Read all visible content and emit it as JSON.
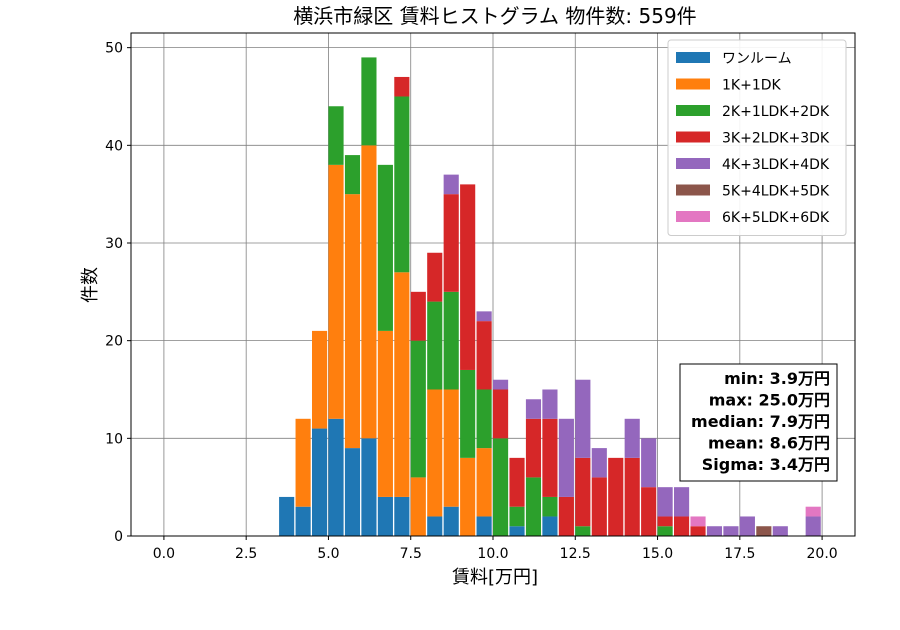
{
  "chart_data": {
    "type": "bar",
    "stacked": true,
    "title": "横浜市緑区 賃料ヒストグラム 物件数: 559件",
    "xlabel": "賃料[万円]",
    "ylabel": "件数",
    "xlim": [
      -1.0,
      21.0
    ],
    "ylim": [
      0,
      51.5
    ],
    "xticks": [
      "0.0",
      "2.5",
      "5.0",
      "7.5",
      "10.0",
      "12.5",
      "15.0",
      "17.5",
      "20.0"
    ],
    "yticks": [
      "0",
      "10",
      "20",
      "30",
      "40",
      "50"
    ],
    "grid": true,
    "legend_position": "top-right",
    "bin_width": 0.5,
    "bins": [
      3.5,
      4.0,
      4.5,
      5.0,
      5.5,
      6.0,
      6.5,
      7.0,
      7.5,
      8.0,
      8.5,
      9.0,
      9.5,
      10.0,
      10.5,
      11.0,
      11.5,
      12.0,
      12.5,
      13.0,
      13.5,
      14.0,
      14.5,
      15.0,
      15.5,
      16.0,
      16.5,
      17.0,
      17.5,
      18.0,
      18.5,
      19.0,
      19.5
    ],
    "series": [
      {
        "name": "ワンルーム",
        "color": "#1f77b4",
        "values": [
          4,
          3,
          11,
          12,
          9,
          10,
          4,
          4,
          0,
          2,
          3,
          0,
          2,
          0,
          1,
          0,
          2,
          0,
          0,
          0,
          0,
          0,
          0,
          0,
          0,
          0,
          0,
          0,
          0,
          0,
          0,
          0,
          0
        ]
      },
      {
        "name": "1K+1DK",
        "color": "#ff7f0e",
        "values": [
          0,
          9,
          10,
          26,
          26,
          30,
          17,
          23,
          6,
          13,
          12,
          8,
          7,
          0,
          0,
          0,
          0,
          0,
          0,
          0,
          0,
          0,
          0,
          0,
          0,
          0,
          0,
          0,
          0,
          0,
          0,
          0,
          0
        ]
      },
      {
        "name": "2K+1LDK+2DK",
        "color": "#2ca02c",
        "values": [
          0,
          0,
          0,
          6,
          4,
          9,
          17,
          18,
          14,
          9,
          10,
          9,
          6,
          10,
          2,
          6,
          2,
          0,
          1,
          0,
          0,
          0,
          0,
          1,
          0,
          0,
          0,
          0,
          0,
          0,
          0,
          0,
          0
        ]
      },
      {
        "name": "3K+2LDK+3DK",
        "color": "#d62728",
        "values": [
          0,
          0,
          0,
          0,
          0,
          0,
          0,
          2,
          5,
          5,
          10,
          19,
          7,
          5,
          5,
          6,
          8,
          4,
          7,
          6,
          8,
          8,
          5,
          1,
          2,
          1,
          0,
          0,
          0,
          0,
          0,
          0,
          0
        ]
      },
      {
        "name": "4K+3LDK+4DK",
        "color": "#9467bd",
        "values": [
          0,
          0,
          0,
          0,
          0,
          0,
          0,
          0,
          0,
          0,
          2,
          0,
          1,
          1,
          0,
          2,
          3,
          8,
          8,
          3,
          0,
          4,
          5,
          3,
          3,
          0,
          1,
          1,
          2,
          0,
          1,
          0,
          2
        ]
      },
      {
        "name": "5K+4LDK+5DK",
        "color": "#8c564b",
        "values": [
          0,
          0,
          0,
          0,
          0,
          0,
          0,
          0,
          0,
          0,
          0,
          0,
          0,
          0,
          0,
          0,
          0,
          0,
          0,
          0,
          0,
          0,
          0,
          0,
          0,
          0,
          0,
          0,
          0,
          1,
          0,
          0,
          0
        ]
      },
      {
        "name": "6K+5LDK+6DK",
        "color": "#e377c2",
        "values": [
          0,
          0,
          0,
          0,
          0,
          0,
          0,
          0,
          0,
          0,
          0,
          0,
          0,
          0,
          0,
          0,
          0,
          0,
          0,
          0,
          0,
          0,
          0,
          0,
          0,
          1,
          0,
          0,
          0,
          0,
          0,
          0,
          1
        ]
      }
    ],
    "stats": [
      "min: 3.9万円",
      "max: 25.0万円",
      "median: 7.9万円",
      "mean: 8.6万円",
      "Sigma: 3.4万円"
    ]
  }
}
